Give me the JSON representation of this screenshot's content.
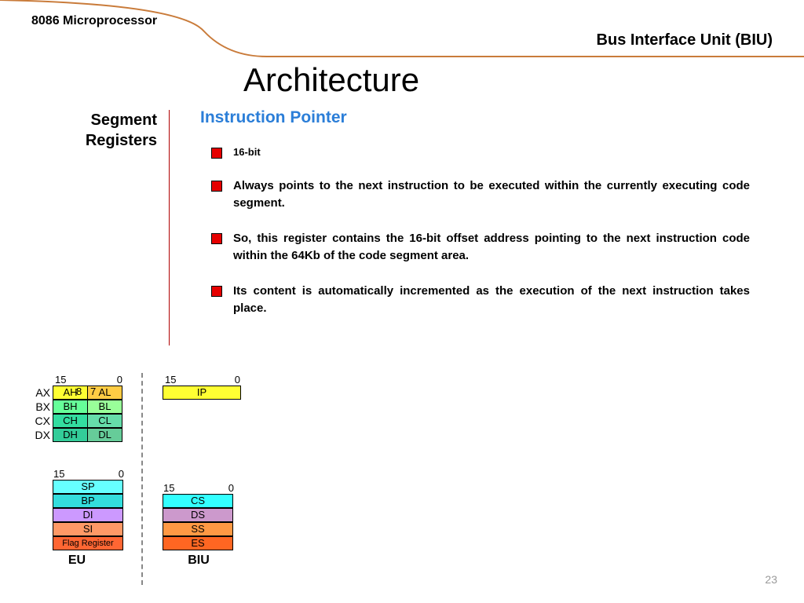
{
  "header": {
    "topLeft": "8086 Microprocessor",
    "topRight": "Bus Interface Unit (BIU)",
    "title": "Architecture"
  },
  "leftLabel": "Segment Registers",
  "content": {
    "title": "Instruction Pointer",
    "bullets": [
      "16-bit",
      "Always points to the next instruction to be executed within the currently executing code segment.",
      "So, this register contains the 16-bit offset address pointing to the next instruction code within the 64Kb of the code segment area.",
      "Its content is automatically incremented as the execution of the next instruction takes place."
    ]
  },
  "diagram": {
    "gprBitLabels": [
      "15",
      "8",
      "7",
      "0"
    ],
    "gpr": [
      {
        "name": "AX",
        "hi": "AH",
        "lo": "AL",
        "hiColor": "#ffff33",
        "loColor": "#ffcc44"
      },
      {
        "name": "BX",
        "hi": "BH",
        "lo": "BL",
        "hiColor": "#66ff99",
        "loColor": "#99ff99"
      },
      {
        "name": "CX",
        "hi": "CH",
        "lo": "CL",
        "hiColor": "#33dda0",
        "loColor": "#66ddaa"
      },
      {
        "name": "DX",
        "hi": "DH",
        "lo": "DL",
        "hiColor": "#33cc99",
        "loColor": "#66cc99"
      }
    ],
    "ip": {
      "bitLabels": [
        "15",
        "0"
      ],
      "name": "IP",
      "color": "#ffff33"
    },
    "euBitLabels": [
      "15",
      "0"
    ],
    "eu": [
      {
        "name": "SP",
        "color": "#66ffff"
      },
      {
        "name": "BP",
        "color": "#33dddd"
      },
      {
        "name": "DI",
        "color": "#cc99ff"
      },
      {
        "name": "SI",
        "color": "#ff9966"
      },
      {
        "name": "Flag Register",
        "color": "#ff6633",
        "small": true
      }
    ],
    "euLabel": "EU",
    "biuBitLabels": [
      "15",
      "0"
    ],
    "biu": [
      {
        "name": "CS",
        "color": "#33ffff"
      },
      {
        "name": "DS",
        "color": "#cc99cc"
      },
      {
        "name": "SS",
        "color": "#ff9944"
      },
      {
        "name": "ES",
        "color": "#ff6622"
      }
    ],
    "biuLabel": "BIU"
  },
  "pageNumber": "23",
  "colors": {
    "curve": "#c97b3a",
    "accent": "#2b7ed8",
    "bulletFill": "#e60000",
    "divider": "#b00000"
  }
}
